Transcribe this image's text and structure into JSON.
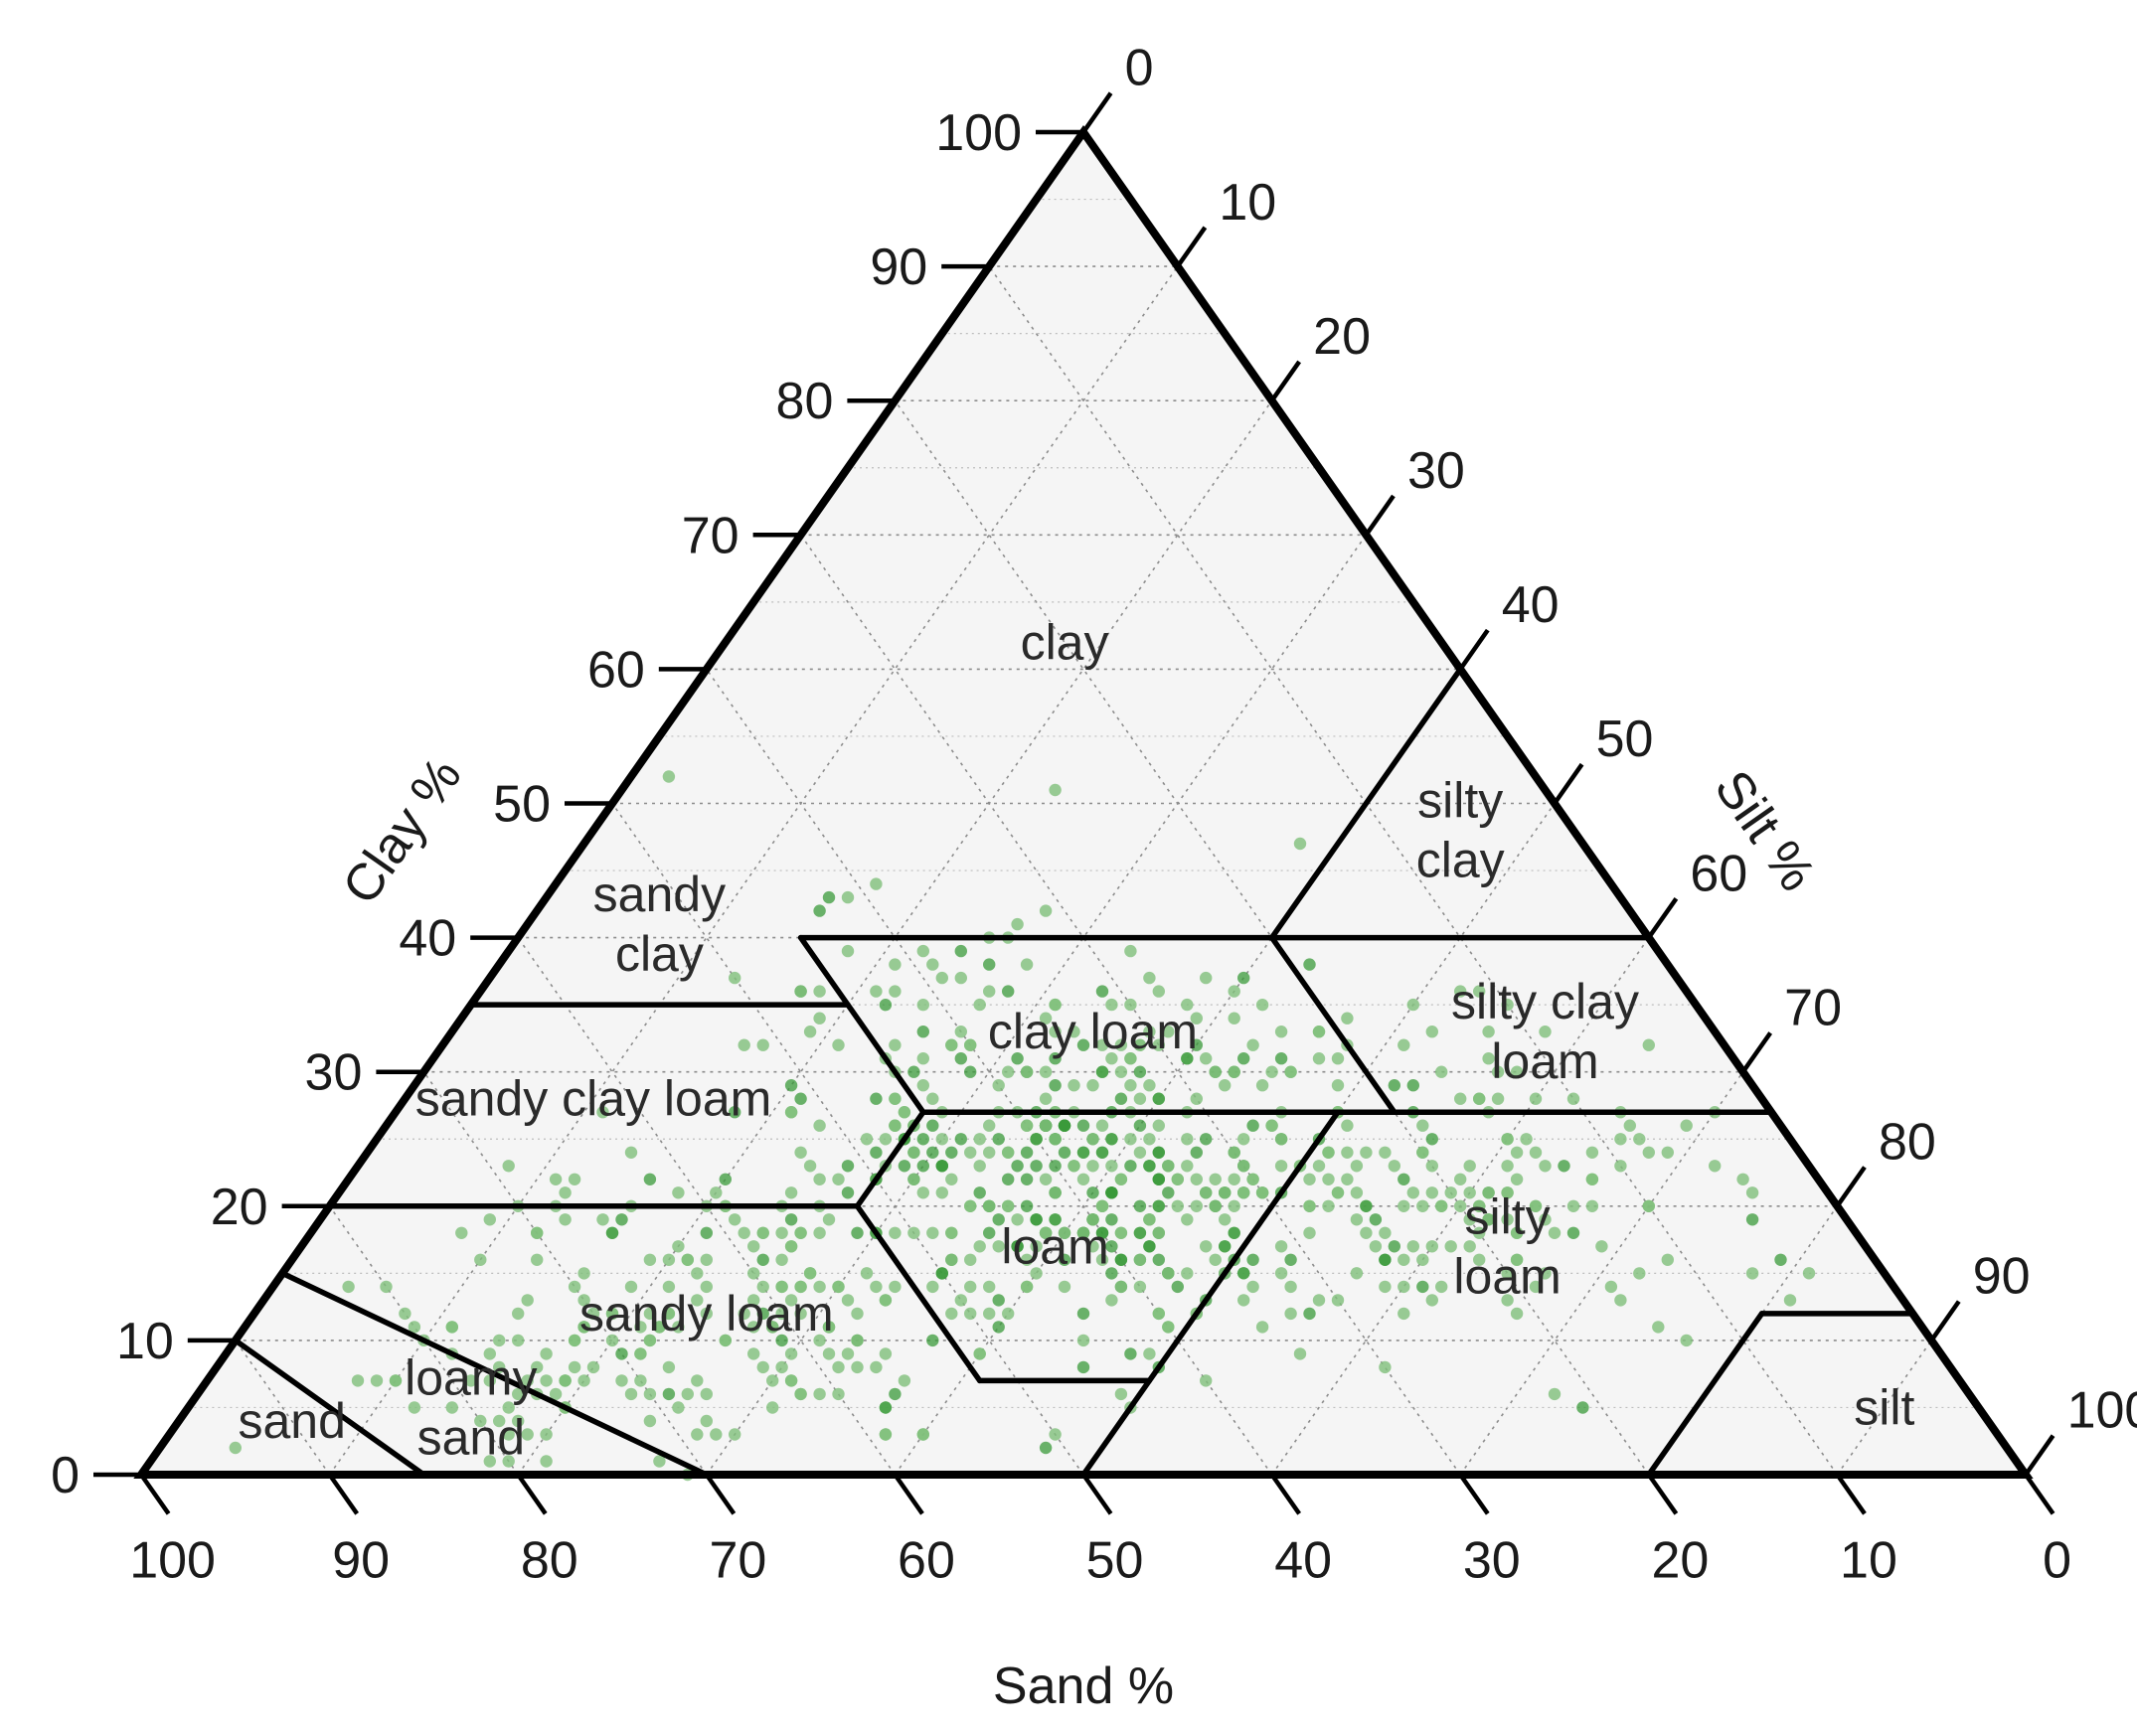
{
  "chart_data": {
    "type": "ternary",
    "axes": {
      "clay": {
        "label": "Clay %",
        "ticks": [
          0,
          10,
          20,
          30,
          40,
          50,
          60,
          70,
          80,
          90,
          100
        ]
      },
      "silt": {
        "label": "Silt %",
        "ticks": [
          0,
          10,
          20,
          30,
          40,
          50,
          60,
          70,
          80,
          90,
          100
        ]
      },
      "sand": {
        "label": "Sand %",
        "ticks": [
          100,
          90,
          80,
          70,
          60,
          50,
          40,
          30,
          20,
          10,
          0
        ]
      }
    },
    "grid": true,
    "grid_step": 10,
    "colors": {
      "background": "#f5f5f5",
      "point": "#7fbf7b",
      "point_dark": "#3a9a3a",
      "boundary": "#000000",
      "grid": "#8c8c8c"
    },
    "regions": [
      {
        "name": "clay",
        "lines": [
          "clay"
        ],
        "anchor": {
          "sand": 20,
          "clay": 62
        }
      },
      {
        "name": "silty clay",
        "lines": [
          "silty",
          "clay"
        ],
        "anchor": {
          "sand": 6,
          "clay": 48
        }
      },
      {
        "name": "sandy clay",
        "lines": [
          "sandy",
          "clay"
        ],
        "anchor": {
          "sand": 52,
          "clay": 41
        }
      },
      {
        "name": "silty clay loam",
        "lines": [
          "silty clay",
          "loam"
        ],
        "anchor": {
          "sand": 9,
          "clay": 33
        }
      },
      {
        "name": "clay loam",
        "lines": [
          "clay loam"
        ],
        "anchor": {
          "sand": 33,
          "clay": 33
        }
      },
      {
        "name": "sandy clay loam",
        "lines": [
          "sandy clay loam"
        ],
        "anchor": {
          "sand": 62,
          "clay": 28
        }
      },
      {
        "name": "loam",
        "lines": [
          "loam"
        ],
        "anchor": {
          "sand": 43,
          "clay": 17
        }
      },
      {
        "name": "silty loam",
        "lines": [
          "silty",
          "loam"
        ],
        "anchor": {
          "sand": 19,
          "clay": 17
        }
      },
      {
        "name": "sandy loam",
        "lines": [
          "sandy loam"
        ],
        "anchor": {
          "sand": 64,
          "clay": 12
        }
      },
      {
        "name": "loamy sand",
        "lines": [
          "loamy",
          "sand"
        ],
        "anchor": {
          "sand": 80,
          "clay": 5
        }
      },
      {
        "name": "sand",
        "lines": [
          "sand"
        ],
        "anchor": {
          "sand": 90,
          "clay": 4
        }
      },
      {
        "name": "silt",
        "lines": [
          "silt"
        ],
        "anchor": {
          "sand": 5,
          "clay": 5
        }
      }
    ],
    "boundaries": [
      [
        {
          "sand": 45,
          "clay": 55
        },
        {
          "sand": 65,
          "clay": 35
        }
      ],
      [
        {
          "sand": 45,
          "clay": 40
        },
        {
          "sand": 20,
          "clay": 40
        }
      ],
      [
        {
          "sand": 20,
          "clay": 40
        },
        {
          "sand": 0,
          "clay": 40
        }
      ],
      [
        {
          "sand": 20,
          "clay": 40
        },
        {
          "sand": 0,
          "clay": 60
        }
      ],
      [
        {
          "sand": 65,
          "clay": 35
        },
        {
          "sand": 45,
          "clay": 35
        }
      ],
      [
        {
          "sand": 45,
          "clay": 27
        },
        {
          "sand": 0,
          "clay": 27
        }
      ],
      [
        {
          "sand": 20,
          "clay": 40
        },
        {
          "sand": 20,
          "clay": 27
        }
      ],
      [
        {
          "sand": 45,
          "clay": 40
        },
        {
          "sand": 45,
          "clay": 27
        }
      ],
      [
        {
          "sand": 45,
          "clay": 27
        },
        {
          "sand": 52,
          "clay": 20
        }
      ],
      [
        {
          "sand": 80,
          "clay": 20
        },
        {
          "sand": 52,
          "clay": 20
        }
      ],
      [
        {
          "sand": 52,
          "clay": 20
        },
        {
          "sand": 52,
          "clay": 7
        }
      ],
      [
        {
          "sand": 52,
          "clay": 7
        },
        {
          "sand": 43,
          "clay": 7
        }
      ],
      [
        {
          "sand": 23,
          "clay": 27
        },
        {
          "sand": 50,
          "clay": 0
        }
      ],
      [
        {
          "sand": 20,
          "clay": 0
        },
        {
          "sand": 8,
          "clay": 12
        }
      ],
      [
        {
          "sand": 8,
          "clay": 12
        },
        {
          "sand": 0,
          "clay": 12
        }
      ],
      [
        {
          "sand": 85,
          "clay": 15
        },
        {
          "sand": 70,
          "clay": 0
        }
      ],
      [
        {
          "sand": 90,
          "clay": 10
        },
        {
          "sand": 85,
          "clay": 0
        }
      ]
    ],
    "points_generator": {
      "seed": 20240517,
      "clusters": [
        {
          "n": 330,
          "sand_mean": 40,
          "sand_sd": 6,
          "clay_mean": 22,
          "clay_sd": 5.5,
          "dark_fraction": 0.45
        },
        {
          "n": 170,
          "sand_mean": 60,
          "sand_sd": 7,
          "clay_mean": 13,
          "clay_sd": 5,
          "dark_fraction": 0.12
        },
        {
          "n": 140,
          "sand_mean": 23,
          "sand_sd": 7,
          "clay_mean": 21,
          "clay_sd": 6,
          "dark_fraction": 0.12
        },
        {
          "n": 60,
          "sand_mean": 32,
          "sand_sd": 8,
          "clay_mean": 34,
          "clay_sd": 4,
          "dark_fraction": 0.15
        },
        {
          "n": 60,
          "sand_mean": 76,
          "sand_sd": 6,
          "clay_mean": 7,
          "clay_sd": 3,
          "dark_fraction": 0.05
        },
        {
          "n": 45,
          "sand_mean": 12,
          "sand_sd": 6,
          "clay_mean": 26,
          "clay_sd": 5,
          "dark_fraction": 0.05
        }
      ],
      "extra_points": [
        {
          "sand": 46,
          "clay": 52
        },
        {
          "sand": 26,
          "clay": 51
        },
        {
          "sand": 15,
          "clay": 47
        },
        {
          "sand": 39,
          "clay": 44
        },
        {
          "sand": 41,
          "clay": 43
        },
        {
          "sand": 33,
          "clay": 41
        },
        {
          "sand": 50,
          "clay": 37
        },
        {
          "sand": 62,
          "clay": 16
        },
        {
          "sand": 50,
          "clay": 3
        },
        {
          "sand": 40,
          "clay": 7
        },
        {
          "sand": 15,
          "clay": 13
        },
        {
          "sand": 13,
          "clay": 10
        },
        {
          "sand": 30,
          "clay": 8
        },
        {
          "sand": 22,
          "clay": 6
        }
      ]
    }
  }
}
